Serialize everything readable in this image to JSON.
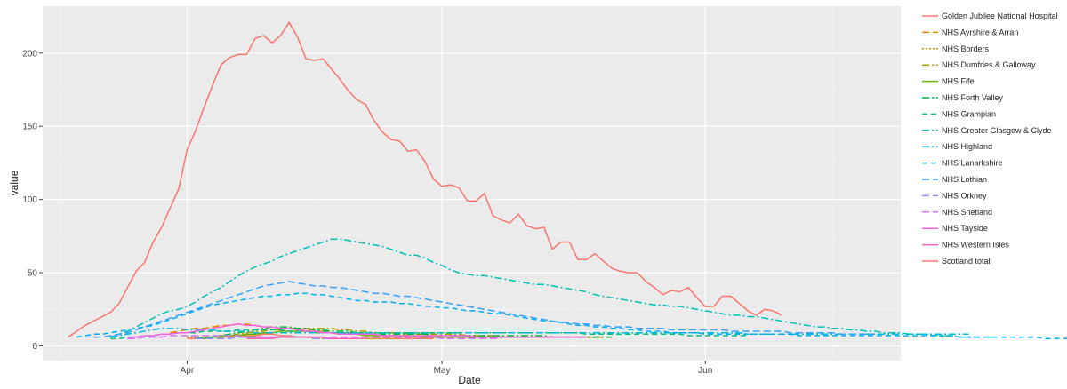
{
  "chart_data": {
    "type": "line",
    "title": "",
    "xlabel": "Date",
    "ylabel": "value",
    "x_start": "2020-03-18",
    "xlim": [
      "2020-03-15",
      "2020-06-24"
    ],
    "ylim": [
      -10,
      232
    ],
    "x_ticks": [
      {
        "date": "2020-04-01",
        "label": "Apr"
      },
      {
        "date": "2020-05-01",
        "label": "May"
      },
      {
        "date": "2020-06-01",
        "label": "Jun"
      }
    ],
    "y_ticks": [
      0,
      50,
      100,
      150,
      200
    ],
    "grid": true,
    "legend_position": "right",
    "series": [
      {
        "name": "Golden Jubilee National Hospital",
        "color": "#F8766D",
        "dash": "",
        "start": "2020-04-01",
        "values": [
          5,
          5,
          5,
          6,
          6,
          6,
          7,
          7,
          7,
          8,
          8,
          7,
          7,
          6,
          6,
          6,
          6,
          5,
          5,
          5,
          5,
          5,
          5,
          5,
          5,
          5,
          5,
          5,
          5,
          5
        ]
      },
      {
        "name": "NHS Ayrshire & Arran",
        "color": "#E58700",
        "dash": "8,4",
        "start": "2020-03-30",
        "values": [
          9,
          10,
          11,
          12,
          12,
          13,
          14,
          14,
          15,
          15,
          14,
          13,
          13,
          12,
          12,
          11,
          11,
          10,
          10,
          9,
          9,
          9,
          8,
          8,
          8,
          7,
          7,
          7,
          7,
          7,
          7,
          6,
          6,
          6,
          6,
          6,
          6,
          6,
          6,
          6,
          6,
          6,
          6,
          6,
          6,
          6,
          6,
          6,
          6,
          6,
          6,
          6
        ]
      },
      {
        "name": "NHS Borders",
        "color": "#C99800",
        "dash": "2,2",
        "start": "2020-04-01",
        "values": [
          6,
          6,
          6,
          6,
          7,
          7,
          7,
          7,
          7,
          6,
          6,
          6,
          6,
          6,
          6,
          5,
          5,
          5,
          5,
          5,
          5,
          5,
          5,
          5,
          5,
          5
        ]
      },
      {
        "name": "NHS Dumfries & Galloway",
        "color": "#A3A500",
        "dash": "8,3,2,3",
        "start": "2020-04-03",
        "values": [
          6,
          6,
          7,
          7,
          8,
          9,
          10,
          10,
          11,
          11,
          12,
          12,
          12,
          12,
          12,
          12,
          11,
          11,
          10,
          10,
          9,
          9,
          9,
          9,
          8,
          8,
          8,
          8,
          8,
          8,
          8,
          7,
          7,
          7,
          7,
          7
        ]
      },
      {
        "name": "NHS Fife",
        "color": "#6BB100",
        "dash": "",
        "start": "2020-04-02",
        "values": [
          5,
          5,
          6,
          6,
          7,
          7,
          8,
          8,
          9,
          9,
          10,
          10,
          10,
          10,
          9,
          9,
          9,
          8,
          8,
          8,
          7,
          7,
          7,
          7,
          7,
          7,
          6,
          6,
          6,
          6,
          6,
          6,
          6,
          6,
          6,
          6,
          6,
          6,
          6,
          6
        ]
      },
      {
        "name": "NHS Forth Valley",
        "color": "#00BA38",
        "dash": "8,3,2,3",
        "start": "2020-04-02",
        "values": [
          5,
          6,
          6,
          7,
          8,
          9,
          10,
          11,
          12,
          13,
          13,
          13,
          12,
          12,
          11,
          11,
          10,
          10,
          10,
          9,
          9,
          9,
          8,
          8,
          8,
          8,
          8,
          8,
          7,
          7,
          7,
          7,
          7,
          7,
          7,
          7,
          7,
          7,
          7,
          7,
          7,
          7,
          6,
          6,
          6,
          6,
          6,
          6,
          6,
          6
        ]
      },
      {
        "name": "NHS Grampian",
        "color": "#00BF7D",
        "dash": "6,4",
        "start": "2020-03-23",
        "values": [
          5,
          5,
          6,
          6,
          7,
          7,
          8,
          8,
          9,
          9,
          9,
          10,
          10,
          10,
          10,
          11,
          11,
          11,
          11,
          11,
          11,
          10,
          10,
          10,
          10,
          10,
          9,
          9,
          9,
          9,
          9,
          9,
          9,
          9,
          9,
          9,
          9,
          9,
          9,
          9,
          9,
          9,
          9,
          9,
          9,
          9,
          9,
          9,
          9,
          9,
          9,
          9,
          9,
          9,
          9,
          9,
          8,
          8,
          8,
          8,
          8,
          8,
          8,
          8,
          8,
          8,
          8,
          8,
          7,
          7,
          7,
          7,
          7,
          7,
          7,
          7
        ]
      },
      {
        "name": "NHS Greater Glasgow & Clyde",
        "color": "#00C0B8",
        "dash": "8,3,2,3",
        "start": "2020-03-23",
        "values": [
          6,
          8,
          10,
          13,
          16,
          19,
          22,
          24,
          25,
          27,
          30,
          34,
          37,
          40,
          44,
          48,
          51,
          54,
          56,
          58,
          61,
          63,
          65,
          67,
          69,
          71,
          73,
          73,
          72,
          71,
          70,
          69,
          68,
          66,
          64,
          62,
          62,
          60,
          57,
          55,
          52,
          50,
          49,
          48,
          48,
          47,
          46,
          45,
          44,
          43,
          42,
          42,
          41,
          40,
          39,
          38,
          37,
          35,
          34,
          33,
          32,
          31,
          30,
          29,
          28,
          28,
          27,
          27,
          26,
          25,
          24,
          23,
          22,
          21,
          21,
          20,
          20,
          19,
          18,
          17,
          16,
          15,
          14,
          13,
          13,
          12,
          12,
          11,
          11,
          10,
          10,
          9,
          9,
          9,
          8,
          8,
          8,
          7,
          7,
          7,
          6,
          6,
          6,
          6,
          6
        ]
      },
      {
        "name": "NHS Highland",
        "color": "#00BCD8",
        "dash": "8,3,2,3",
        "start": "2020-03-23",
        "values": [
          6,
          7,
          8,
          9,
          10,
          11,
          12,
          12,
          12,
          11,
          11,
          11,
          11,
          10,
          10,
          10,
          10,
          9,
          9,
          9,
          9,
          9,
          9,
          9,
          9,
          9,
          9,
          9,
          9,
          9,
          9,
          9,
          9,
          9,
          9,
          9,
          9,
          9,
          9,
          9,
          9,
          9,
          9,
          9,
          9,
          9,
          9,
          9,
          9,
          9,
          9,
          9,
          9,
          9,
          9,
          9,
          9,
          9,
          9,
          9,
          9,
          9,
          9,
          9,
          9,
          9,
          9,
          9,
          9,
          9,
          9,
          9,
          9,
          9,
          9,
          8,
          8,
          8,
          8,
          8,
          8,
          8,
          8,
          8,
          8,
          8,
          8,
          8,
          8,
          8,
          8,
          8,
          8,
          8,
          8,
          8,
          8,
          8,
          8,
          8,
          8,
          8
        ]
      },
      {
        "name": "NHS Lanarkshire",
        "color": "#00B0F6",
        "dash": "6,4",
        "start": "2020-03-19",
        "values": [
          6,
          7,
          8,
          8,
          9,
          10,
          11,
          12,
          13,
          14,
          16,
          18,
          20,
          22,
          24,
          26,
          28,
          29,
          30,
          31,
          32,
          33,
          34,
          34,
          35,
          35,
          36,
          36,
          35,
          35,
          34,
          33,
          32,
          31,
          31,
          30,
          30,
          30,
          29,
          29,
          28,
          27,
          27,
          26,
          26,
          25,
          24,
          24,
          23,
          22,
          22,
          21,
          20,
          19,
          18,
          17,
          17,
          16,
          15,
          14,
          14,
          13,
          13,
          12,
          12,
          11,
          11,
          10,
          10,
          10,
          9,
          9,
          9,
          9,
          8,
          8,
          8,
          8,
          8,
          8,
          8,
          8,
          8,
          8,
          8,
          7,
          7,
          7,
          7,
          7,
          7,
          7,
          7,
          7,
          7,
          7,
          7,
          7,
          7,
          7,
          7,
          7,
          7,
          7,
          6,
          6,
          6,
          6,
          6,
          6,
          6,
          6,
          6,
          6,
          5,
          5,
          5,
          5,
          5,
          5,
          5,
          5
        ]
      },
      {
        "name": "NHS Lothian",
        "color": "#35A2FF",
        "dash": "8,4",
        "start": "2020-03-21",
        "values": [
          6,
          6,
          7,
          8,
          9,
          11,
          13,
          15,
          17,
          19,
          21,
          23,
          25,
          27,
          29,
          31,
          33,
          35,
          37,
          39,
          41,
          42,
          43,
          44,
          43,
          42,
          41,
          41,
          40,
          40,
          39,
          38,
          37,
          36,
          36,
          35,
          34,
          34,
          33,
          32,
          31,
          30,
          29,
          28,
          27,
          26,
          25,
          24,
          23,
          22,
          21,
          20,
          19,
          18,
          17,
          16,
          16,
          15,
          15,
          14,
          14,
          13,
          13,
          13,
          12,
          12,
          12,
          12,
          11,
          11,
          11,
          11,
          11,
          11,
          11,
          10,
          10,
          10,
          10,
          10,
          10,
          10,
          9,
          9,
          9,
          9,
          9,
          9,
          8,
          8,
          8,
          8,
          8
        ]
      },
      {
        "name": "NHS Orkney",
        "color": "#9590FF",
        "dash": "8,4",
        "start": "2020-04-02",
        "values": [
          5,
          5,
          5,
          5,
          5,
          6,
          6,
          6,
          6,
          6,
          6,
          6,
          6,
          6,
          5,
          5,
          5,
          5,
          5,
          5
        ]
      },
      {
        "name": "NHS Shetland",
        "color": "#D575FE",
        "dash": "8,4",
        "start": "2020-03-25",
        "values": [
          5,
          5,
          6,
          6,
          6,
          7,
          7,
          7,
          7,
          7,
          7,
          7,
          7,
          7,
          6,
          6,
          6,
          6,
          6,
          6,
          6,
          6,
          6,
          6,
          6,
          6,
          6,
          6,
          6,
          6,
          6,
          6,
          6,
          6,
          6,
          6,
          6,
          5,
          5,
          5,
          5,
          5,
          5,
          5,
          5
        ]
      },
      {
        "name": "NHS Tayside",
        "color": "#F763E0",
        "dash": "",
        "start": "2020-03-25",
        "values": [
          6,
          6,
          7,
          7,
          8,
          8,
          9,
          9,
          10,
          11,
          12,
          13,
          14,
          15,
          14,
          14,
          13,
          13,
          12,
          12,
          11,
          10,
          10,
          9,
          9,
          8,
          8,
          8,
          8,
          8,
          7,
          7,
          7,
          7,
          7,
          7,
          7,
          7,
          7,
          7,
          7,
          6,
          6,
          6,
          6,
          6,
          6,
          6,
          6,
          6,
          6,
          6,
          6,
          6,
          6
        ]
      },
      {
        "name": "NHS Western Isles",
        "color": "#FF65AC",
        "dash": "",
        "start": "2020-04-08",
        "values": [
          5,
          5,
          5,
          5,
          6,
          6,
          6,
          6,
          6,
          6,
          5,
          5,
          5,
          5,
          5
        ]
      },
      {
        "name": "Scotland total",
        "color": "#F8766D",
        "dash": "",
        "start": "2020-03-18",
        "values": [
          6,
          10,
          14,
          17,
          20,
          23,
          29,
          40,
          51,
          57,
          71,
          81,
          94,
          107,
          134,
          147,
          163,
          178,
          192,
          197,
          199,
          199,
          210,
          212,
          207,
          212,
          221,
          211,
          196,
          195,
          196,
          189,
          182,
          174,
          168,
          165,
          154,
          146,
          141,
          140,
          133,
          134,
          126,
          114,
          109,
          110,
          108,
          99,
          99,
          104,
          89,
          86,
          84,
          90,
          82,
          80,
          81,
          66,
          71,
          71,
          59,
          59,
          63,
          58,
          53,
          51,
          50,
          50,
          44,
          40,
          35,
          38,
          37,
          40,
          33,
          27,
          27,
          34,
          34,
          29,
          24,
          21,
          25,
          24,
          21
        ]
      }
    ]
  }
}
